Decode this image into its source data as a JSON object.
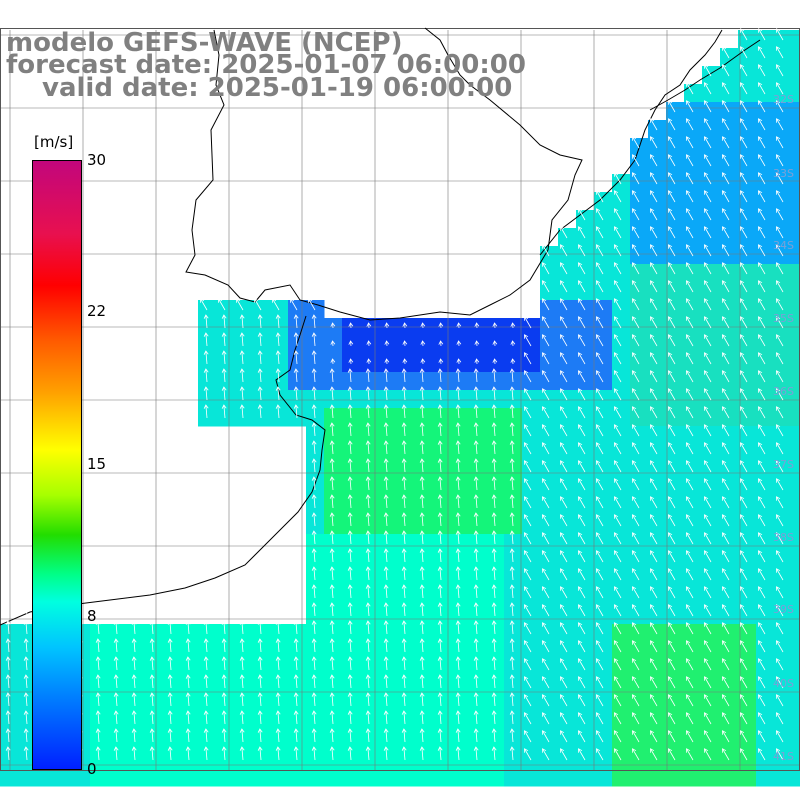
{
  "title": {
    "line1": "modelo GEFS-WAVE (NCEP)",
    "line2": "forecast date: 2025-01-07 06:00:00",
    "line3": "valid date: 2025-01-19 06:00:00"
  },
  "colorbar": {
    "unit": "[m/s]",
    "ticks": [
      "30",
      "22",
      "15",
      "8",
      "0"
    ],
    "tick_values": [
      30,
      22,
      15,
      8,
      0
    ],
    "colors": [
      "#c2067c",
      "#ff0000",
      "#ffa000",
      "#ffff00",
      "#22dd00",
      "#00ffe0",
      "#0080ff",
      "#0020ff"
    ]
  },
  "lat_labels": [
    "32S",
    "33S",
    "34S",
    "35S",
    "36S",
    "37S",
    "38S",
    "39S",
    "40S",
    "41S"
  ],
  "colors": {
    "land": "#ffffff",
    "coast": "#000000",
    "grid": "#777777",
    "arrow": "#ffffff",
    "title": "#808080"
  }
}
